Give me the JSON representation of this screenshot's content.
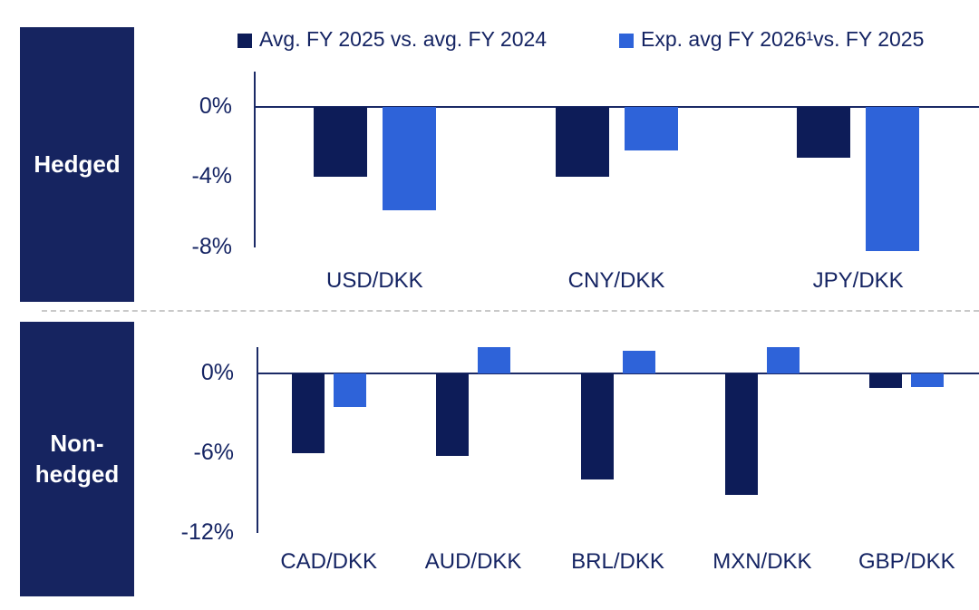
{
  "legend": {
    "series1_label": "Avg. FY 2025 vs. avg. FY 2024",
    "series2_label": "Exp. avg FY 2026¹vs. FY 2025"
  },
  "sidebar": {
    "hedged_label": "Hedged",
    "non_hedged_line1": "Non-",
    "non_hedged_line2": "hedged"
  },
  "colors": {
    "bar_dark_navy": "#0d1c58",
    "bar_blue": "#2e63d9",
    "sidebar_navy": "#162460",
    "text_navy": "#152463",
    "axis_navy": "#1b2a66",
    "divider_gray": "#c9c9c9"
  },
  "chart_data": [
    {
      "type": "bar",
      "panel_label": "Hedged",
      "categories": [
        "USD/DKK",
        "CNY/DKK",
        "JPY/DKK"
      ],
      "series": [
        {
          "name": "Avg. FY 2025 vs. avg. FY 2024",
          "color": "#0d1c58",
          "values": [
            -4.0,
            -4.0,
            -2.9
          ]
        },
        {
          "name": "Exp. avg FY 2026¹ vs. FY 2025",
          "color": "#2e63d9",
          "values": [
            -5.9,
            -2.5,
            -8.2
          ]
        }
      ],
      "unit": "%",
      "ylim": [
        -8,
        2
      ],
      "yticks": [
        {
          "value": 0,
          "label": "0%"
        },
        {
          "value": -4,
          "label": "-4%"
        },
        {
          "value": -8,
          "label": "-8%"
        }
      ],
      "grid": false,
      "legend_position": "top"
    },
    {
      "type": "bar",
      "panel_label": "Non-hedged",
      "categories": [
        "CAD/DKK",
        "AUD/DKK",
        "BRL/DKK",
        "MXN/DKK",
        "GBP/DKK"
      ],
      "series": [
        {
          "name": "Avg. FY 2025 vs. avg. FY 2024",
          "color": "#0d1c58",
          "values": [
            -6.0,
            -6.2,
            -8.0,
            -9.1,
            -1.1
          ]
        },
        {
          "name": "Exp. avg FY 2026¹ vs. FY 2025",
          "color": "#2e63d9",
          "values": [
            -2.5,
            2.0,
            1.7,
            2.0,
            -1.0
          ]
        }
      ],
      "unit": "%",
      "ylim": [
        -12,
        2
      ],
      "yticks": [
        {
          "value": 0,
          "label": "0%"
        },
        {
          "value": -6,
          "label": "-6%"
        },
        {
          "value": -12,
          "label": "-12%"
        }
      ],
      "grid": false,
      "legend_position": "top"
    }
  ]
}
